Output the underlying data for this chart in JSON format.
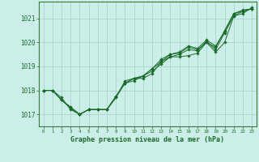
{
  "title": "Graphe pression niveau de la mer (hPa)",
  "background_color": "#cceee8",
  "grid_color": "#aad4cc",
  "line_color": "#1a6b2a",
  "spine_color": "#3a7a3a",
  "xlim": [
    -0.5,
    23.5
  ],
  "ylim": [
    1016.5,
    1021.7
  ],
  "yticks": [
    1017,
    1018,
    1019,
    1020,
    1021
  ],
  "xticks": [
    0,
    1,
    2,
    3,
    4,
    5,
    6,
    7,
    8,
    9,
    10,
    11,
    12,
    13,
    14,
    15,
    16,
    17,
    18,
    19,
    20,
    21,
    22,
    23
  ],
  "series": [
    [
      1018.0,
      1018.0,
      1017.6,
      1017.3,
      1017.0,
      1017.2,
      1017.2,
      1017.2,
      1017.7,
      1018.4,
      1018.5,
      1018.5,
      1018.7,
      1019.2,
      1019.4,
      1019.4,
      1019.45,
      1019.55,
      1020.0,
      1019.6,
      1020.0,
      1021.1,
      1021.2,
      1021.45
    ],
    [
      1018.0,
      1018.0,
      1017.6,
      1017.3,
      1017.0,
      1017.2,
      1017.2,
      1017.2,
      1017.7,
      1018.3,
      1018.4,
      1018.6,
      1018.8,
      1019.1,
      1019.4,
      1019.5,
      1019.7,
      1019.65,
      1020.05,
      1019.7,
      1020.4,
      1021.1,
      1021.3,
      1021.4
    ],
    [
      1018.0,
      1018.0,
      1017.6,
      1017.25,
      1017.0,
      1017.2,
      1017.2,
      1017.2,
      1017.75,
      1018.3,
      1018.5,
      1018.6,
      1018.9,
      1019.2,
      1019.5,
      1019.55,
      1019.8,
      1019.7,
      1020.0,
      1019.8,
      1020.5,
      1021.2,
      1021.35,
      1021.4
    ],
    [
      1018.0,
      1018.0,
      1017.7,
      1017.2,
      1017.0,
      1017.2,
      1017.2,
      1017.2,
      1017.75,
      1018.3,
      1018.5,
      1018.6,
      1018.9,
      1019.3,
      1019.5,
      1019.6,
      1019.85,
      1019.75,
      1020.1,
      1019.85,
      1020.45,
      1021.2,
      1021.3,
      1021.4
    ]
  ]
}
